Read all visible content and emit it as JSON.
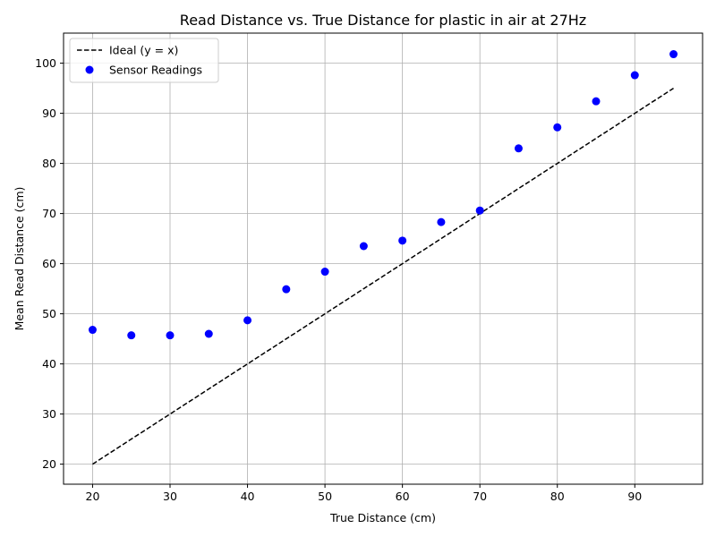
{
  "chart_data": {
    "type": "scatter",
    "title": "Read Distance vs. True Distance for plastic in air at 27Hz",
    "xlabel": "True Distance (cm)",
    "ylabel": "Mean Read Distance (cm)",
    "xlim": [
      16.25,
      98.75
    ],
    "ylim": [
      16.0,
      106.0
    ],
    "xticks": [
      20,
      30,
      40,
      50,
      60,
      70,
      80,
      90
    ],
    "yticks": [
      20,
      30,
      40,
      50,
      60,
      70,
      80,
      90,
      100
    ],
    "grid": true,
    "legend_position": "top-left",
    "series": [
      {
        "name": "Ideal (y = x)",
        "kind": "line",
        "style": "dashed",
        "color": "#000000",
        "x": [
          20,
          95
        ],
        "y": [
          20,
          95
        ]
      },
      {
        "name": "Sensor Readings",
        "kind": "scatter",
        "color": "#0000ff",
        "x": [
          20,
          25,
          30,
          35,
          40,
          45,
          50,
          55,
          60,
          65,
          70,
          75,
          80,
          85,
          90,
          95
        ],
        "y": [
          46.8,
          45.7,
          45.7,
          46.0,
          48.7,
          54.9,
          58.4,
          63.5,
          64.6,
          68.3,
          70.6,
          83.0,
          87.2,
          92.4,
          97.6,
          101.8
        ]
      }
    ]
  }
}
